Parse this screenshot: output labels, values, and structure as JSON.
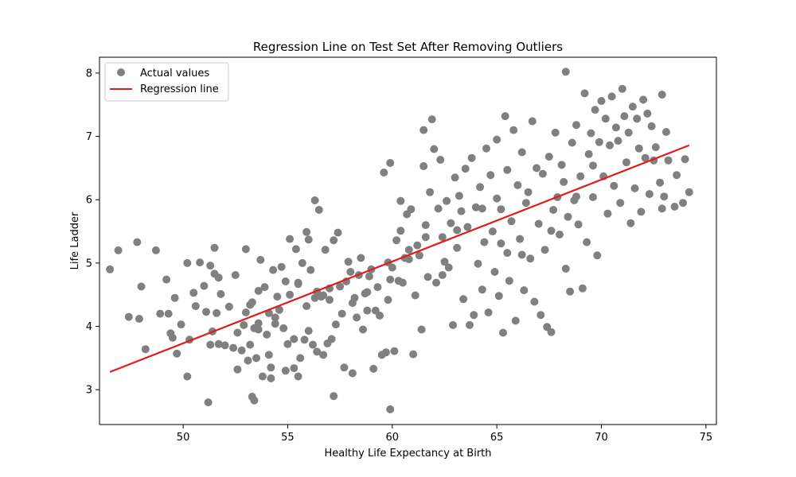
{
  "chart_data": {
    "type": "scatter",
    "title": "Regression Line on Test Set After Removing Outliers",
    "xlabel": "Healthy Life Expectancy at Birth",
    "ylabel": "Life Ladder",
    "xlim": [
      46.0,
      75.5
    ],
    "ylim": [
      2.45,
      8.25
    ],
    "xticks": [
      50,
      55,
      60,
      65,
      70,
      75
    ],
    "yticks": [
      3,
      4,
      5,
      6,
      7,
      8
    ],
    "grid": false,
    "legend_position": "top-left",
    "legend": [
      "Actual values",
      "Regression line"
    ],
    "series": [
      {
        "name": "Actual values",
        "kind": "scatter",
        "color": "#808080",
        "points": [
          [
            46.5,
            4.9
          ],
          [
            46.9,
            5.2
          ],
          [
            47.4,
            4.15
          ],
          [
            47.8,
            5.33
          ],
          [
            47.9,
            4.12
          ],
          [
            48.0,
            4.63
          ],
          [
            48.2,
            3.64
          ],
          [
            48.7,
            5.2
          ],
          [
            48.9,
            4.2
          ],
          [
            49.2,
            4.74
          ],
          [
            49.3,
            4.2
          ],
          [
            49.4,
            3.89
          ],
          [
            49.5,
            3.82
          ],
          [
            49.7,
            3.57
          ],
          [
            49.6,
            4.45
          ],
          [
            49.9,
            4.03
          ],
          [
            50.2,
            5.0
          ],
          [
            50.3,
            3.79
          ],
          [
            50.2,
            3.21
          ],
          [
            50.5,
            4.53
          ],
          [
            50.6,
            4.32
          ],
          [
            50.8,
            5.01
          ],
          [
            51.0,
            4.64
          ],
          [
            51.1,
            4.23
          ],
          [
            51.2,
            2.8
          ],
          [
            51.3,
            4.96
          ],
          [
            51.3,
            3.71
          ],
          [
            51.4,
            3.92
          ],
          [
            51.5,
            5.24
          ],
          [
            51.5,
            4.83
          ],
          [
            51.6,
            4.21
          ],
          [
            51.7,
            3.72
          ],
          [
            51.7,
            4.77
          ],
          [
            51.8,
            4.51
          ],
          [
            52.0,
            3.7
          ],
          [
            52.2,
            4.31
          ],
          [
            52.4,
            3.66
          ],
          [
            52.5,
            4.81
          ],
          [
            52.6,
            3.9
          ],
          [
            52.6,
            3.32
          ],
          [
            52.8,
            3.62
          ],
          [
            53.0,
            4.22
          ],
          [
            53.0,
            5.22
          ],
          [
            53.1,
            3.46
          ],
          [
            53.2,
            4.34
          ],
          [
            53.2,
            3.71
          ],
          [
            53.3,
            4.38
          ],
          [
            53.4,
            2.83
          ],
          [
            53.3,
            2.89
          ],
          [
            53.5,
            3.5
          ],
          [
            53.4,
            3.97
          ],
          [
            53.6,
            4.56
          ],
          [
            53.6,
            4.05
          ],
          [
            53.7,
            5.05
          ],
          [
            53.8,
            3.21
          ],
          [
            53.9,
            4.62
          ],
          [
            54.0,
            3.87
          ],
          [
            54.1,
            3.55
          ],
          [
            54.1,
            4.21
          ],
          [
            54.2,
            3.35
          ],
          [
            54.2,
            3.18
          ],
          [
            54.3,
            4.89
          ],
          [
            54.4,
            4.04
          ],
          [
            54.5,
            4.47
          ],
          [
            54.6,
            4.26
          ],
          [
            54.7,
            4.94
          ],
          [
            54.8,
            3.97
          ],
          [
            54.9,
            3.3
          ],
          [
            54.9,
            4.71
          ],
          [
            55.0,
            3.72
          ],
          [
            55.1,
            5.38
          ],
          [
            55.1,
            4.5
          ],
          [
            55.3,
            3.8
          ],
          [
            55.3,
            3.34
          ],
          [
            55.4,
            5.22
          ],
          [
            55.5,
            4.69
          ],
          [
            55.5,
            3.21
          ],
          [
            55.6,
            3.5
          ],
          [
            55.7,
            5.0
          ],
          [
            55.8,
            3.79
          ],
          [
            55.9,
            4.32
          ],
          [
            55.9,
            5.49
          ],
          [
            56.0,
            5.37
          ],
          [
            56.0,
            3.93
          ],
          [
            56.1,
            4.89
          ],
          [
            56.2,
            3.71
          ],
          [
            56.3,
            4.45
          ],
          [
            56.3,
            5.99
          ],
          [
            56.4,
            4.55
          ],
          [
            56.4,
            3.6
          ],
          [
            56.5,
            5.84
          ],
          [
            56.6,
            4.47
          ],
          [
            56.7,
            3.55
          ],
          [
            56.8,
            5.21
          ],
          [
            56.9,
            3.73
          ],
          [
            57.0,
            4.42
          ],
          [
            57.0,
            4.6
          ],
          [
            57.1,
            3.8
          ],
          [
            57.2,
            2.9
          ],
          [
            57.2,
            5.36
          ],
          [
            57.3,
            4.03
          ],
          [
            57.4,
            5.48
          ],
          [
            57.6,
            4.2
          ],
          [
            57.7,
            3.35
          ],
          [
            57.8,
            4.71
          ],
          [
            57.9,
            5.02
          ],
          [
            58.0,
            4.86
          ],
          [
            58.1,
            3.26
          ],
          [
            58.1,
            4.37
          ],
          [
            58.2,
            4.45
          ],
          [
            58.3,
            4.14
          ],
          [
            58.4,
            4.81
          ],
          [
            58.5,
            5.08
          ],
          [
            58.6,
            3.95
          ],
          [
            58.7,
            4.52
          ],
          [
            58.8,
            4.25
          ],
          [
            58.9,
            4.79
          ],
          [
            59.0,
            4.9
          ],
          [
            59.1,
            3.33
          ],
          [
            59.2,
            4.25
          ],
          [
            59.3,
            4.62
          ],
          [
            59.4,
            4.17
          ],
          [
            59.5,
            3.55
          ],
          [
            59.6,
            6.43
          ],
          [
            59.7,
            3.59
          ],
          [
            59.8,
            4.42
          ],
          [
            59.8,
            5.01
          ],
          [
            59.9,
            2.69
          ],
          [
            59.9,
            6.58
          ],
          [
            60.0,
            4.93
          ],
          [
            60.1,
            3.61
          ],
          [
            60.2,
            5.36
          ],
          [
            60.3,
            4.72
          ],
          [
            60.4,
            5.51
          ],
          [
            60.4,
            5.98
          ],
          [
            60.5,
            4.69
          ],
          [
            60.6,
            5.08
          ],
          [
            60.7,
            5.77
          ],
          [
            60.8,
            5.06
          ],
          [
            60.9,
            5.85
          ],
          [
            61.0,
            3.56
          ],
          [
            61.1,
            4.49
          ],
          [
            61.2,
            5.28
          ],
          [
            61.3,
            5.12
          ],
          [
            61.4,
            3.95
          ],
          [
            61.5,
            6.53
          ],
          [
            61.5,
            7.1
          ],
          [
            61.6,
            5.6
          ],
          [
            61.7,
            4.78
          ],
          [
            61.8,
            6.12
          ],
          [
            61.9,
            7.27
          ],
          [
            62.0,
            6.8
          ],
          [
            62.1,
            4.69
          ],
          [
            62.2,
            5.86
          ],
          [
            62.3,
            6.63
          ],
          [
            62.4,
            5.41
          ],
          [
            62.5,
            5.02
          ],
          [
            62.6,
            5.98
          ],
          [
            62.7,
            4.93
          ],
          [
            62.8,
            5.63
          ],
          [
            62.9,
            4.02
          ],
          [
            63.0,
            6.35
          ],
          [
            63.1,
            5.24
          ],
          [
            63.2,
            6.06
          ],
          [
            63.3,
            5.82
          ],
          [
            63.4,
            4.43
          ],
          [
            63.5,
            6.49
          ],
          [
            63.6,
            5.57
          ],
          [
            63.7,
            4.02
          ],
          [
            63.8,
            6.66
          ],
          [
            63.9,
            4.18
          ],
          [
            64.0,
            5.88
          ],
          [
            64.1,
            4.99
          ],
          [
            64.2,
            6.2
          ],
          [
            64.3,
            4.58
          ],
          [
            64.4,
            5.33
          ],
          [
            64.5,
            6.81
          ],
          [
            64.6,
            4.22
          ],
          [
            64.7,
            6.39
          ],
          [
            64.8,
            5.5
          ],
          [
            64.9,
            4.86
          ],
          [
            65.0,
            6.02
          ],
          [
            65.0,
            6.95
          ],
          [
            65.1,
            4.48
          ],
          [
            65.2,
            5.85
          ],
          [
            65.3,
            3.9
          ],
          [
            65.4,
            7.32
          ],
          [
            65.5,
            5.16
          ],
          [
            65.5,
            6.47
          ],
          [
            65.6,
            4.72
          ],
          [
            65.7,
            5.66
          ],
          [
            65.8,
            7.1
          ],
          [
            65.9,
            4.09
          ],
          [
            66.0,
            6.23
          ],
          [
            66.1,
            5.38
          ],
          [
            66.2,
            6.75
          ],
          [
            66.3,
            4.57
          ],
          [
            66.4,
            5.95
          ],
          [
            66.5,
            6.12
          ],
          [
            66.6,
            5.07
          ],
          [
            66.7,
            7.24
          ],
          [
            66.8,
            4.39
          ],
          [
            66.9,
            6.5
          ],
          [
            67.0,
            5.62
          ],
          [
            67.1,
            4.18
          ],
          [
            67.2,
            6.41
          ],
          [
            67.3,
            5.21
          ],
          [
            67.4,
            3.99
          ],
          [
            67.5,
            6.68
          ],
          [
            67.6,
            3.91
          ],
          [
            67.7,
            5.84
          ],
          [
            67.8,
            7.06
          ],
          [
            67.9,
            6.04
          ],
          [
            68.0,
            5.45
          ],
          [
            68.1,
            6.55
          ],
          [
            68.2,
            6.28
          ],
          [
            68.3,
            4.91
          ],
          [
            68.3,
            8.02
          ],
          [
            68.4,
            5.73
          ],
          [
            68.5,
            4.55
          ],
          [
            68.6,
            6.9
          ],
          [
            68.7,
            5.99
          ],
          [
            68.8,
            7.18
          ],
          [
            68.9,
            5.61
          ],
          [
            69.0,
            6.37
          ],
          [
            69.1,
            4.6
          ],
          [
            69.2,
            7.68
          ],
          [
            69.3,
            5.33
          ],
          [
            69.4,
            6.72
          ],
          [
            69.5,
            7.05
          ],
          [
            69.6,
            6.04
          ],
          [
            69.7,
            7.42
          ],
          [
            69.8,
            5.12
          ],
          [
            69.9,
            6.91
          ],
          [
            70.0,
            7.56
          ],
          [
            70.1,
            6.37
          ],
          [
            70.2,
            7.28
          ],
          [
            70.3,
            5.78
          ],
          [
            70.4,
            6.86
          ],
          [
            70.5,
            7.63
          ],
          [
            70.6,
            6.22
          ],
          [
            70.7,
            7.14
          ],
          [
            70.8,
            6.93
          ],
          [
            70.9,
            5.95
          ],
          [
            71.0,
            7.75
          ],
          [
            71.1,
            7.32
          ],
          [
            71.2,
            6.59
          ],
          [
            71.3,
            7.06
          ],
          [
            71.4,
            5.63
          ],
          [
            71.5,
            7.47
          ],
          [
            71.6,
            6.18
          ],
          [
            71.7,
            7.28
          ],
          [
            71.8,
            6.81
          ],
          [
            71.9,
            5.81
          ],
          [
            72.0,
            7.58
          ],
          [
            72.1,
            6.66
          ],
          [
            72.2,
            7.36
          ],
          [
            72.3,
            6.09
          ],
          [
            72.4,
            7.16
          ],
          [
            72.5,
            6.62
          ],
          [
            72.6,
            6.83
          ],
          [
            72.8,
            6.27
          ],
          [
            72.9,
            7.66
          ],
          [
            73.0,
            6.05
          ],
          [
            73.1,
            7.07
          ],
          [
            73.2,
            6.62
          ],
          [
            73.5,
            5.89
          ],
          [
            73.6,
            6.39
          ],
          [
            73.9,
            5.95
          ],
          [
            74.0,
            6.64
          ],
          [
            74.2,
            6.12
          ],
          [
            72.9,
            5.86
          ],
          [
            66.2,
            5.13
          ],
          [
            65.2,
            5.31
          ],
          [
            64.3,
            5.86
          ],
          [
            63.1,
            5.52
          ],
          [
            62.4,
            4.81
          ],
          [
            61.6,
            5.41
          ],
          [
            60.8,
            5.21
          ],
          [
            59.9,
            4.74
          ],
          [
            58.8,
            4.54
          ],
          [
            57.5,
            4.63
          ],
          [
            56.7,
            4.49
          ],
          [
            55.5,
            4.67
          ],
          [
            54.4,
            4.14
          ],
          [
            53.6,
            3.95
          ],
          [
            52.9,
            4.02
          ],
          [
            67.6,
            5.51
          ],
          [
            68.8,
            6.05
          ],
          [
            69.6,
            6.54
          ]
        ]
      },
      {
        "name": "Regression line",
        "kind": "line",
        "color": "#e31a1c",
        "points": [
          [
            46.5,
            3.28
          ],
          [
            74.2,
            6.86
          ]
        ]
      }
    ]
  }
}
